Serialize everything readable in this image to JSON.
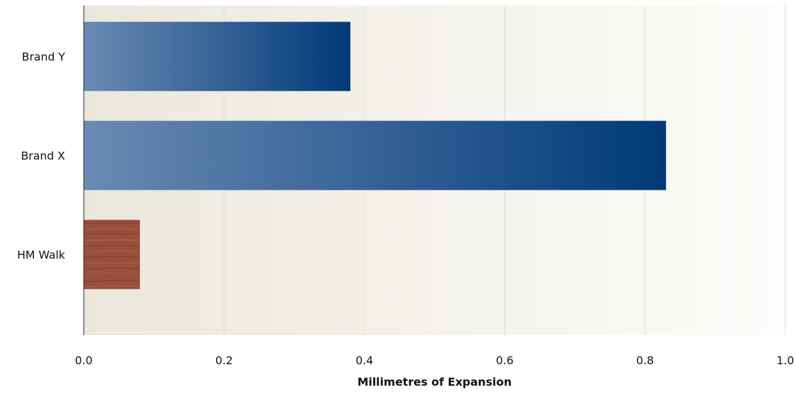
{
  "chart_data": {
    "type": "bar",
    "orientation": "horizontal",
    "categories": [
      "Brand Y",
      "Brand X",
      "HM Walk"
    ],
    "values": [
      0.38,
      0.83,
      0.08
    ],
    "title": "",
    "xlabel": "Millimetres of Expansion",
    "ylabel": "",
    "xlim": [
      0.0,
      1.0
    ],
    "xticks": [
      "0.0",
      "0.2",
      "0.4",
      "0.6",
      "0.8",
      "1.0"
    ],
    "grid": true,
    "legend": "none"
  },
  "colors": {
    "plot_bg_left": "#ebe7dc",
    "plot_bg_right": "#fcfcfa",
    "gridline": "#dcdccc",
    "axis_line": "#222222",
    "bar_gradient_light": "#6a8ab4",
    "bar_gradient_dark": "#003a78",
    "wood_base": "#9b4e3c",
    "wood_grain_dark": "#7a3628",
    "wood_grain_light": "#b86a52"
  },
  "bar_fills": [
    "blue-gradient",
    "blue-gradient",
    "wood-texture"
  ]
}
